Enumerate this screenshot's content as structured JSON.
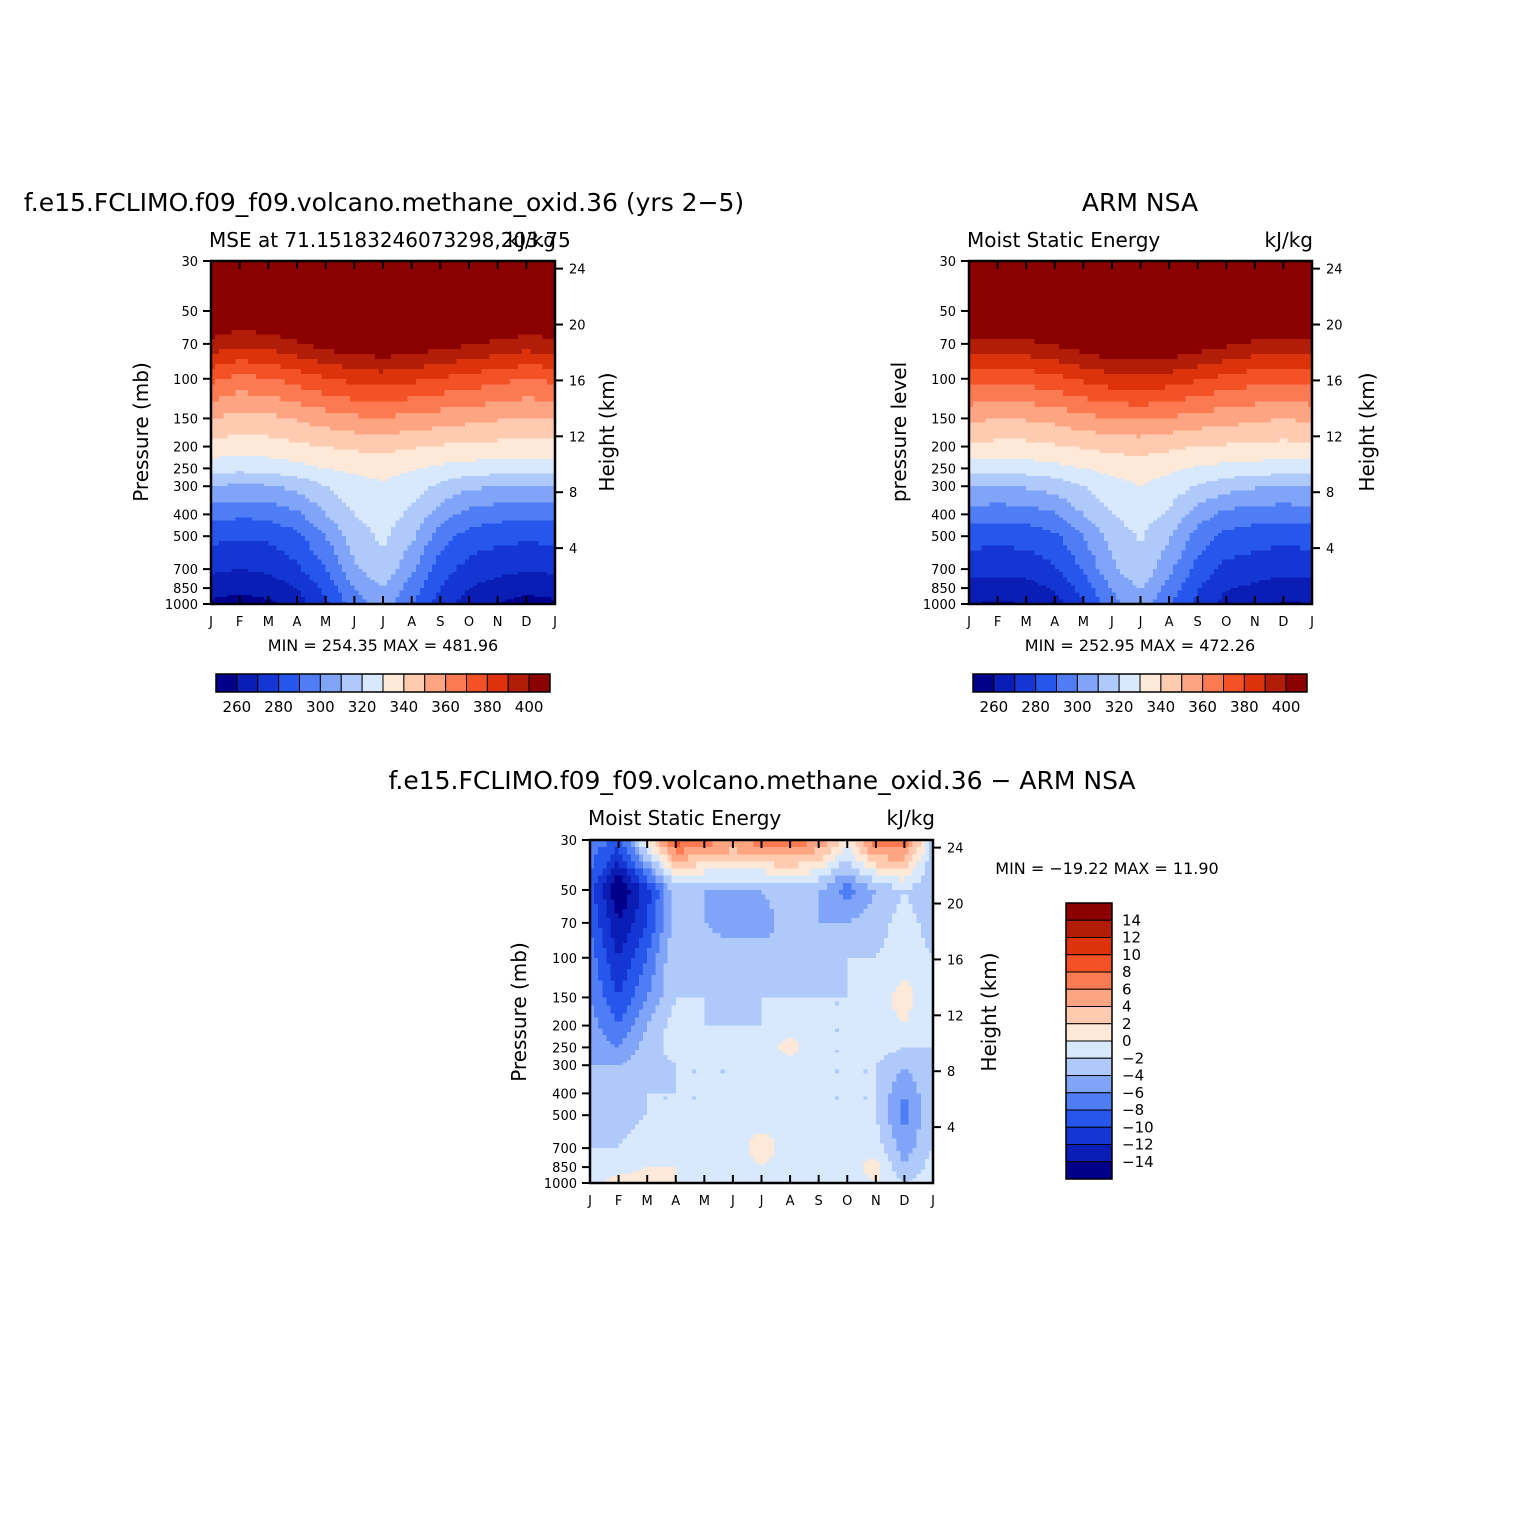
{
  "figure": {
    "panel_left": {
      "main_title": "f.e15.FCLIMO.f09_f09.volcano.methane_oxid.36 (yrs 2−5)",
      "left_subtitle": "MSE at 71.15183246073298,203.75",
      "right_subtitle": "kJ/kg",
      "ylabel_left": "Pressure (mb)",
      "ylabel_right": "Height (km)",
      "stats": "MIN = 254.35 MAX = 481.96"
    },
    "panel_right": {
      "main_title": "ARM NSA",
      "left_subtitle": "Moist Static Energy",
      "right_subtitle": "kJ/kg",
      "ylabel_left": "pressure level",
      "ylabel_right": "Height (km)",
      "stats": "MIN = 252.95 MAX = 472.26"
    },
    "panel_diff": {
      "main_title": "f.e15.FCLIMO.f09_f09.volcano.methane_oxid.36 − ARM NSA",
      "left_subtitle": "Moist Static Energy",
      "right_subtitle": "kJ/kg",
      "ylabel_left": "Pressure (mb)",
      "ylabel_right": "Height (km)",
      "stats": "MIN = −19.22 MAX =   11.90"
    }
  },
  "chart_data": [
    {
      "type": "heatmap",
      "id": "model",
      "x_tick_labels": [
        "J",
        "F",
        "M",
        "A",
        "M",
        "J",
        "J",
        "A",
        "S",
        "O",
        "N",
        "D",
        "J"
      ],
      "pressure_levels": [
        30,
        50,
        70,
        100,
        150,
        200,
        250,
        300,
        400,
        500,
        700,
        850,
        1000
      ],
      "pressure_tick_labels": [
        "30",
        "50",
        "70",
        "100",
        "150",
        "200",
        "250",
        "300",
        "400",
        "500",
        "700",
        "850",
        "1000"
      ],
      "height_ticks_km": [
        4,
        8,
        12,
        16,
        20,
        24
      ],
      "height_tick_labels": [
        "4",
        "8",
        "12",
        "16",
        "20",
        "24"
      ],
      "contour_levels": [
        250,
        260,
        270,
        280,
        290,
        300,
        310,
        320,
        330,
        340,
        350,
        360,
        370,
        380,
        390,
        400,
        410
      ],
      "colorbar_tick_labels": [
        "260",
        "280",
        "300",
        "320",
        "340",
        "360",
        "380",
        "400"
      ],
      "colors": [
        "#00008b",
        "#0a1db5",
        "#1436d2",
        "#2656ec",
        "#4f7df5",
        "#7fa4f8",
        "#b0c9fb",
        "#d8e8fd",
        "#fee9d8",
        "#fecbb0",
        "#fda482",
        "#fb7a52",
        "#f25225",
        "#dc330c",
        "#b11d08",
        "#8b0000"
      ],
      "rows": [
        [
          415,
          415,
          415,
          415,
          415,
          415,
          415,
          415,
          415,
          415,
          415,
          415,
          415
        ],
        [
          414,
          411,
          413,
          415,
          418,
          420,
          421,
          420,
          419,
          418,
          416,
          414,
          414
        ],
        [
          397,
          392,
          394,
          399,
          404,
          408,
          409,
          408,
          404,
          401,
          398,
          395,
          397
        ],
        [
          372,
          367,
          369,
          374,
          379,
          383,
          385,
          382,
          379,
          376,
          373,
          370,
          372
        ],
        [
          350,
          346,
          347,
          351,
          355,
          358,
          359,
          357,
          355,
          353,
          351,
          349,
          350
        ],
        [
          337,
          335,
          336,
          338,
          340,
          342,
          343,
          341,
          339,
          338,
          337,
          336,
          337
        ],
        [
          324,
          323,
          324,
          327,
          330,
          332,
          333,
          331,
          328,
          326,
          325,
          324,
          324
        ],
        [
          310,
          308,
          309,
          313,
          320,
          326,
          329,
          325,
          318,
          312,
          310,
          309,
          310
        ],
        [
          294,
          292,
          293,
          298,
          310,
          320,
          325,
          318,
          305,
          296,
          294,
          293,
          294
        ],
        [
          283,
          281,
          282,
          287,
          300,
          315,
          322,
          312,
          295,
          286,
          283,
          282,
          283
        ],
        [
          272,
          270,
          272,
          278,
          290,
          308,
          318,
          302,
          285,
          276,
          273,
          271,
          272
        ],
        [
          264,
          262,
          264,
          270,
          283,
          300,
          310,
          295,
          280,
          270,
          266,
          263,
          264
        ],
        [
          258,
          256,
          258,
          265,
          278,
          295,
          306,
          290,
          276,
          265,
          260,
          256,
          258
        ]
      ]
    },
    {
      "type": "heatmap",
      "id": "obs",
      "x_tick_labels": [
        "J",
        "F",
        "M",
        "A",
        "M",
        "J",
        "J",
        "A",
        "S",
        "O",
        "N",
        "D",
        "J"
      ],
      "pressure_levels": [
        30,
        50,
        70,
        100,
        150,
        200,
        250,
        300,
        400,
        500,
        700,
        850,
        1000
      ],
      "pressure_tick_labels": [
        "30",
        "50",
        "70",
        "100",
        "150",
        "200",
        "250",
        "300",
        "400",
        "500",
        "700",
        "850",
        "1000"
      ],
      "height_ticks_km": [
        4,
        8,
        12,
        16,
        20,
        24
      ],
      "height_tick_labels": [
        "4",
        "8",
        "12",
        "16",
        "20",
        "24"
      ],
      "contour_levels": [
        250,
        260,
        270,
        280,
        290,
        300,
        310,
        320,
        330,
        340,
        350,
        360,
        370,
        380,
        390,
        400,
        410
      ],
      "colorbar_tick_labels": [
        "260",
        "280",
        "300",
        "320",
        "340",
        "360",
        "380",
        "400"
      ],
      "colors": [
        "#00008b",
        "#0a1db5",
        "#1436d2",
        "#2656ec",
        "#4f7df5",
        "#7fa4f8",
        "#b0c9fb",
        "#d8e8fd",
        "#fee9d8",
        "#fecbb0",
        "#fda482",
        "#fb7a52",
        "#f25225",
        "#dc330c",
        "#b11d08",
        "#8b0000"
      ],
      "rows": [
        [
          415,
          415,
          415,
          415,
          415,
          415,
          415,
          415,
          415,
          415,
          415,
          415,
          415
        ],
        [
          415,
          415,
          415,
          415,
          415,
          415,
          415,
          415,
          415,
          415,
          415,
          415,
          415
        ],
        [
          398,
          397,
          398,
          401,
          406,
          410,
          412,
          410,
          406,
          402,
          398,
          396,
          398
        ],
        [
          375,
          373,
          374,
          377,
          382,
          386,
          388,
          385,
          381,
          377,
          374,
          372,
          375
        ],
        [
          352,
          350,
          351,
          353,
          357,
          360,
          361,
          359,
          356,
          354,
          352,
          350,
          352
        ],
        [
          338,
          337,
          337,
          339,
          341,
          343,
          344,
          342,
          340,
          339,
          338,
          337,
          338
        ],
        [
          325,
          324,
          325,
          327,
          330,
          333,
          335,
          332,
          329,
          327,
          326,
          325,
          325
        ],
        [
          311,
          310,
          311,
          314,
          320,
          326,
          330,
          326,
          319,
          314,
          311,
          310,
          311
        ],
        [
          295,
          294,
          295,
          299,
          310,
          320,
          325,
          318,
          305,
          297,
          295,
          294,
          295
        ],
        [
          284,
          283,
          284,
          288,
          300,
          314,
          321,
          311,
          296,
          287,
          284,
          283,
          284
        ],
        [
          274,
          273,
          274,
          279,
          291,
          308,
          318,
          303,
          286,
          277,
          275,
          273,
          274
        ],
        [
          266,
          265,
          266,
          271,
          284,
          301,
          311,
          296,
          281,
          271,
          268,
          265,
          266
        ],
        [
          260,
          259,
          260,
          266,
          279,
          296,
          307,
          291,
          277,
          266,
          262,
          259,
          260
        ]
      ]
    },
    {
      "type": "heatmap",
      "id": "diff",
      "x_tick_labels": [
        "J",
        "F",
        "M",
        "A",
        "M",
        "J",
        "J",
        "A",
        "S",
        "O",
        "N",
        "D",
        "J"
      ],
      "pressure_levels": [
        30,
        50,
        70,
        100,
        150,
        200,
        250,
        300,
        400,
        500,
        700,
        850,
        1000
      ],
      "pressure_tick_labels": [
        "30",
        "50",
        "70",
        "100",
        "150",
        "200",
        "250",
        "300",
        "400",
        "500",
        "700",
        "850",
        "1000"
      ],
      "height_ticks_km": [
        4,
        8,
        12,
        16,
        20,
        24
      ],
      "height_tick_labels": [
        "4",
        "8",
        "12",
        "16",
        "20",
        "24"
      ],
      "contour_levels": [
        -16,
        -14,
        -12,
        -10,
        -8,
        -6,
        -4,
        -2,
        0,
        2,
        4,
        6,
        8,
        10,
        12,
        14,
        16
      ],
      "colorbar_tick_labels": [
        "14",
        "12",
        "10",
        "8",
        "6",
        "4",
        "2",
        "0",
        "−2",
        "−4",
        "−6",
        "−8",
        "−10",
        "−12",
        "−14"
      ],
      "colors": [
        "#00008b",
        "#0a1db5",
        "#1436d2",
        "#2656ec",
        "#4f7df5",
        "#7fa4f8",
        "#b0c9fb",
        "#d8e8fd",
        "#fee9d8",
        "#fecbb0",
        "#fda482",
        "#fb7a52",
        "#f25225",
        "#dc330c",
        "#b11d08",
        "#8b0000"
      ],
      "rows": [
        [
          -6,
          -9,
          1,
          9,
          7,
          6,
          7,
          8,
          6,
          1,
          8,
          8,
          -3
        ],
        [
          -9,
          -16,
          -11,
          -3,
          -4,
          -4,
          -4,
          -3,
          -4,
          -7,
          -4,
          -2,
          -4
        ],
        [
          -8,
          -14,
          -10,
          -3,
          -4,
          -5,
          -5,
          -3,
          -4,
          -4,
          -3,
          -1,
          -3
        ],
        [
          -7,
          -12,
          -8,
          -2,
          -3,
          -3,
          -3,
          -3,
          -3,
          -2,
          -2,
          -1,
          -2
        ],
        [
          -6,
          -10,
          -6,
          -2,
          -2,
          -3,
          -2,
          -2,
          -2,
          -2,
          -1,
          1,
          -2
        ],
        [
          -5,
          -8,
          -4,
          -1,
          -2,
          -2,
          -2,
          -1,
          -2,
          -2,
          -1,
          0,
          -2
        ],
        [
          -5,
          -6,
          -3,
          -1,
          -1,
          -1,
          -1,
          1,
          -2,
          -2,
          -1,
          -2,
          -2
        ],
        [
          -4,
          -4,
          -3,
          -2,
          -2,
          -2,
          -2,
          -1,
          -2,
          -2,
          -2,
          -4,
          -2
        ],
        [
          -3,
          -3,
          -2,
          -2,
          -2,
          -2,
          -1,
          -1,
          -2,
          -2,
          -2,
          -6,
          -2
        ],
        [
          -2,
          -3,
          -2,
          -2,
          -2,
          -1,
          -1,
          -1,
          -2,
          -2,
          -2,
          -7,
          -2
        ],
        [
          -2,
          -2,
          -1,
          -1,
          -1,
          -1,
          1,
          -1,
          -1,
          -1,
          -1,
          -5,
          -2
        ],
        [
          -1,
          -1,
          0,
          0,
          -1,
          -1,
          0,
          -1,
          -1,
          -1,
          1,
          -4,
          -1
        ],
        [
          -1,
          1,
          1,
          0,
          -1,
          -1,
          -1,
          -1,
          -1,
          -1,
          0,
          -2,
          -1
        ]
      ]
    }
  ]
}
